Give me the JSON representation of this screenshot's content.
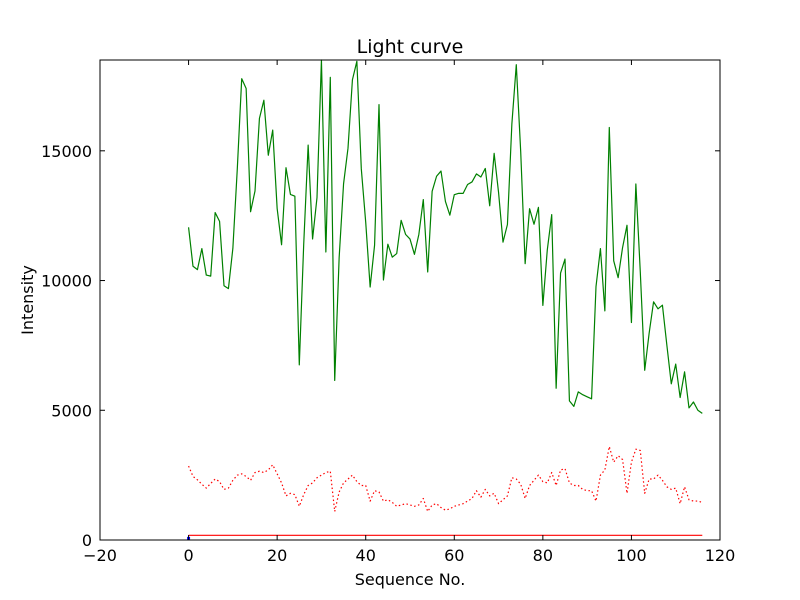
{
  "chart_data": {
    "type": "line",
    "title": "Light curve",
    "xlabel": "Sequence No.",
    "ylabel": "Intensity",
    "xlim": [
      -20,
      120
    ],
    "ylim": [
      0,
      18500
    ],
    "x_ticks": [
      -20,
      0,
      20,
      40,
      60,
      80,
      100,
      120
    ],
    "y_ticks": [
      0,
      5000,
      10000,
      15000
    ],
    "grid": false,
    "series": [
      {
        "color": "#008000",
        "linestyle": "solid",
        "x": [
          0,
          1,
          2,
          3,
          4,
          5,
          6,
          7,
          8,
          9,
          10,
          11,
          12,
          13,
          14,
          15,
          16,
          17,
          18,
          19,
          20,
          21,
          22,
          23,
          24,
          25,
          26,
          27,
          28,
          29,
          30,
          31,
          32,
          33,
          34,
          35,
          36,
          37,
          38,
          39,
          40,
          41,
          42,
          43,
          44,
          45,
          46,
          47,
          48,
          49,
          50,
          51,
          52,
          53,
          54,
          55,
          56,
          57,
          58,
          59,
          60,
          61,
          62,
          63,
          64,
          65,
          66,
          67,
          68,
          69,
          70,
          71,
          72,
          73,
          74,
          75,
          76,
          77,
          78,
          79,
          80,
          81,
          82,
          83,
          84,
          85,
          86,
          87,
          88,
          89,
          90,
          91,
          92,
          93,
          94,
          95,
          96,
          97,
          98,
          99,
          100,
          101,
          102,
          103,
          104,
          105,
          106,
          107,
          108,
          109,
          110,
          111,
          112,
          113,
          114,
          115,
          116
        ],
        "values": [
          12050,
          10550,
          10420,
          11230,
          10210,
          10170,
          12620,
          12280,
          9800,
          9690,
          11240,
          14300,
          17780,
          17400,
          12650,
          13450,
          16250,
          16950,
          14830,
          15800,
          12780,
          11380,
          14350,
          13320,
          13250,
          6750,
          11400,
          15220,
          11600,
          13200,
          18500,
          11100,
          17830,
          6150,
          10880,
          13730,
          15100,
          17740,
          18450,
          14310,
          12250,
          9750,
          11360,
          16780,
          10020,
          11400,
          10900,
          11040,
          12320,
          11780,
          11600,
          11010,
          11780,
          13120,
          10330,
          13440,
          14020,
          14220,
          13050,
          12520,
          13310,
          13360,
          13360,
          13700,
          13800,
          14110,
          13990,
          14320,
          12880,
          14900,
          13390,
          11480,
          12160,
          16030,
          18320,
          14960,
          10650,
          12770,
          12170,
          12820,
          9040,
          11180,
          12540,
          5850,
          10290,
          10830,
          5360,
          5150,
          5710,
          5600,
          5520,
          5440,
          9770,
          11230,
          8830,
          15900,
          10760,
          10110,
          11270,
          12130,
          8380,
          13720,
          10330,
          6540,
          7970,
          9180,
          8910,
          9050,
          7510,
          6020,
          6780,
          5490,
          6480,
          5090,
          5320,
          5000,
          4880
        ]
      },
      {
        "color": "#ff0000",
        "linestyle": "dotted",
        "x": [
          0,
          1,
          2,
          3,
          4,
          5,
          6,
          7,
          8,
          9,
          10,
          11,
          12,
          13,
          14,
          15,
          16,
          17,
          18,
          19,
          20,
          21,
          22,
          23,
          24,
          25,
          26,
          27,
          28,
          29,
          30,
          31,
          32,
          33,
          34,
          35,
          36,
          37,
          38,
          39,
          40,
          41,
          42,
          43,
          44,
          45,
          46,
          47,
          48,
          49,
          50,
          51,
          52,
          53,
          54,
          55,
          56,
          57,
          58,
          59,
          60,
          61,
          62,
          63,
          64,
          65,
          66,
          67,
          68,
          69,
          70,
          71,
          72,
          73,
          74,
          75,
          76,
          77,
          78,
          79,
          80,
          81,
          82,
          83,
          84,
          85,
          86,
          87,
          88,
          89,
          90,
          91,
          92,
          93,
          94,
          95,
          96,
          97,
          98,
          99,
          100,
          101,
          102,
          103,
          104,
          105,
          106,
          107,
          108,
          109,
          110,
          111,
          112,
          113,
          114,
          115,
          116
        ],
        "values": [
          2850,
          2450,
          2320,
          2150,
          2000,
          2180,
          2350,
          2250,
          1950,
          2000,
          2300,
          2500,
          2550,
          2450,
          2300,
          2600,
          2650,
          2600,
          2700,
          2900,
          2550,
          2200,
          1700,
          1800,
          1750,
          1300,
          1750,
          2100,
          2200,
          2400,
          2500,
          2600,
          2650,
          1100,
          1850,
          2200,
          2350,
          2500,
          2250,
          2100,
          2100,
          1500,
          1900,
          1850,
          1500,
          1550,
          1450,
          1300,
          1350,
          1400,
          1350,
          1300,
          1350,
          1600,
          1100,
          1350,
          1400,
          1250,
          1150,
          1200,
          1300,
          1350,
          1400,
          1500,
          1600,
          1900,
          1650,
          1950,
          1700,
          1800,
          1400,
          1550,
          1700,
          2400,
          2350,
          2150,
          1600,
          2100,
          2300,
          2500,
          2250,
          2200,
          2600,
          2100,
          2700,
          2750,
          2200,
          2100,
          2100,
          1950,
          1900,
          1900,
          1500,
          2500,
          2700,
          3600,
          3000,
          3250,
          3100,
          1800,
          3000,
          3500,
          3450,
          1800,
          2350,
          2350,
          2500,
          2300,
          2050,
          1950,
          2000,
          1400,
          2050,
          1550,
          1500,
          1500,
          1450
        ]
      },
      {
        "color": "#ff0000",
        "linestyle": "solid",
        "x": [
          0,
          116
        ],
        "values": [
          180,
          180
        ]
      },
      {
        "color": "#0000ff",
        "linestyle": "solid",
        "x": [
          0,
          0
        ],
        "values": [
          0,
          120
        ]
      }
    ]
  }
}
